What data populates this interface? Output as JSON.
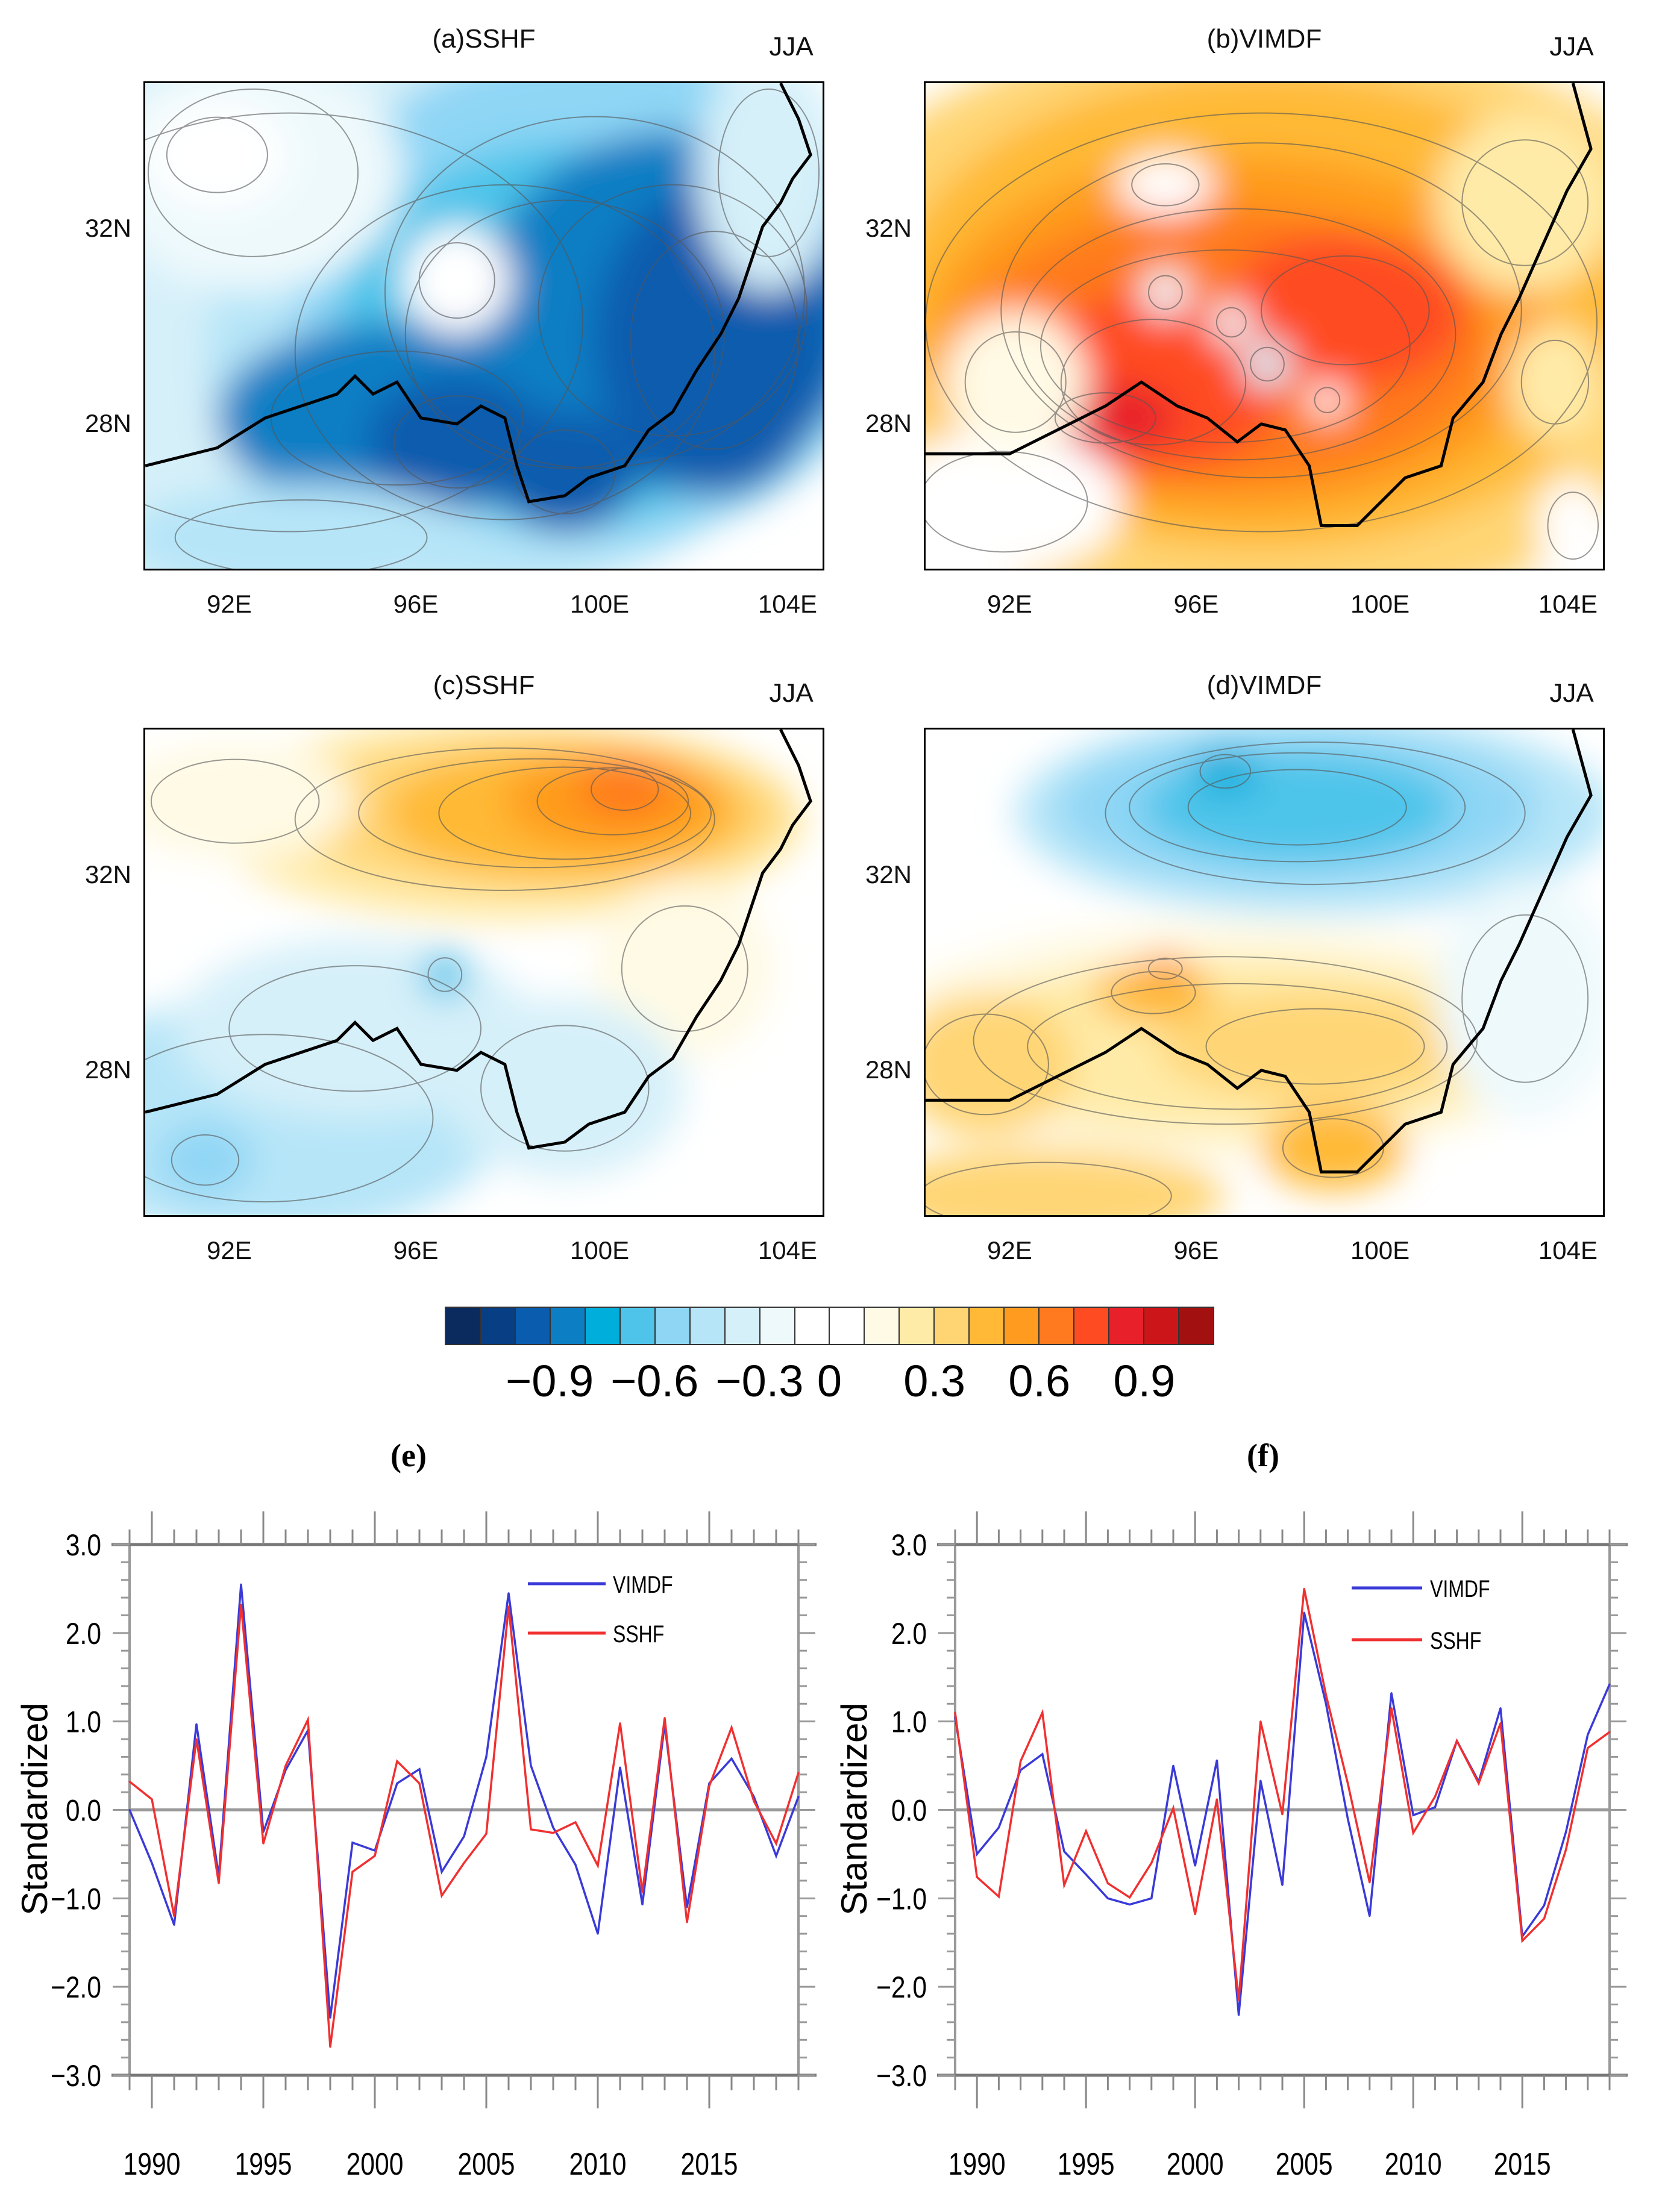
{
  "maps": [
    {
      "title": "(a)SSHF",
      "season": "JJA"
    },
    {
      "title": "(b)VIMDF",
      "season": "JJA"
    },
    {
      "title": "(c)SSHF",
      "season": "JJA"
    },
    {
      "title": "(d)VIMDF",
      "season": "JJA"
    }
  ],
  "lat_labels": [
    "32N",
    "28N"
  ],
  "lon_labels": [
    "92E",
    "96E",
    "100E",
    "104E"
  ],
  "colorbar": {
    "colors": [
      "#0b2a5e",
      "#083f84",
      "#0a5cae",
      "#0b7ec4",
      "#00aedc",
      "#4ec4ea",
      "#8fd6f5",
      "#b6e5f8",
      "#d6f0f9",
      "#eef9fc",
      "#ffffff",
      "#ffffff",
      "#fffae5",
      "#ffeba8",
      "#ffd574",
      "#ffb936",
      "#ff9b1f",
      "#ff7a1f",
      "#ff4b22",
      "#e8202a",
      "#cc1519",
      "#a31010"
    ],
    "labels": [
      "−0.9",
      "−0.6",
      "−0.3",
      "0",
      "0.3",
      "0.6",
      "0.9"
    ]
  },
  "chart_data": [
    {
      "type": "line",
      "panel_label": "(e)",
      "ylabel": "Standardized",
      "xlabel": "",
      "ylim": [
        -3,
        3
      ],
      "xlim": [
        1989,
        2019
      ],
      "yticks": [
        "3.0",
        "2.0",
        "1.0",
        "0.0",
        "−1.0",
        "−2.0",
        "−3.0"
      ],
      "xticks": [
        "1990",
        "1995",
        "2000",
        "2005",
        "2010",
        "2015"
      ],
      "legend_position": "top-right",
      "x": [
        1989,
        1990,
        1991,
        1992,
        1993,
        1994,
        1995,
        1996,
        1997,
        1998,
        1999,
        2000,
        2001,
        2002,
        2003,
        2004,
        2005,
        2006,
        2007,
        2008,
        2009,
        2010,
        2011,
        2012,
        2013,
        2014,
        2015,
        2016,
        2017,
        2018,
        2019
      ],
      "series": [
        {
          "name": "VIMDF",
          "color": "#3a3ad8",
          "values": [
            0.0,
            -0.6,
            -1.3,
            0.97,
            -0.75,
            2.55,
            -0.25,
            0.45,
            0.9,
            -2.35,
            -0.37,
            -0.46,
            0.3,
            0.46,
            -0.7,
            -0.3,
            0.6,
            2.45,
            0.5,
            -0.2,
            -0.62,
            -1.4,
            0.48,
            -1.07,
            0.97,
            -1.1,
            0.3,
            0.58,
            0.15,
            -0.52,
            0.15
          ]
        },
        {
          "name": "SSHF",
          "color": "#f03030",
          "values": [
            0.32,
            0.12,
            -1.2,
            0.8,
            -0.83,
            2.32,
            -0.38,
            0.5,
            1.02,
            -2.68,
            -0.7,
            -0.52,
            0.55,
            0.3,
            -0.97,
            -0.6,
            -0.27,
            2.3,
            -0.22,
            -0.26,
            -0.14,
            -0.63,
            0.98,
            -0.93,
            1.04,
            -1.27,
            0.27,
            0.93,
            0.1,
            -0.38,
            0.42
          ]
        }
      ]
    },
    {
      "type": "line",
      "panel_label": "(f)",
      "ylabel": "Standardized",
      "xlabel": "",
      "ylim": [
        -3,
        3
      ],
      "xlim": [
        1989,
        2019
      ],
      "yticks": [
        "3.0",
        "2.0",
        "1.0",
        "0.0",
        "−1.0",
        "−2.0",
        "−3.0"
      ],
      "xticks": [
        "1990",
        "1995",
        "2000",
        "2005",
        "2010",
        "2015"
      ],
      "legend_position": "top-right",
      "x": [
        1989,
        1990,
        1991,
        1992,
        1993,
        1994,
        1995,
        1996,
        1997,
        1998,
        1999,
        2000,
        2001,
        2002,
        2003,
        2004,
        2005,
        2006,
        2007,
        2008,
        2009,
        2010,
        2011,
        2012,
        2013,
        2014,
        2015,
        2016,
        2017,
        2018,
        2019
      ],
      "series": [
        {
          "name": "VIMDF",
          "color": "#3a3ad8",
          "values": [
            1.05,
            -0.5,
            -0.2,
            0.45,
            0.63,
            -0.47,
            -0.73,
            -1.0,
            -1.07,
            -1.0,
            0.5,
            -0.63,
            0.56,
            -2.32,
            0.33,
            -0.85,
            2.23,
            1.2,
            -0.1,
            -1.2,
            1.32,
            -0.06,
            0.03,
            0.78,
            0.32,
            1.15,
            -1.43,
            -1.08,
            -0.25,
            0.85,
            1.42
          ]
        },
        {
          "name": "SSHF",
          "color": "#f03030",
          "values": [
            1.1,
            -0.76,
            -0.98,
            0.55,
            1.1,
            -0.85,
            -0.24,
            -0.83,
            -0.99,
            -0.6,
            0.02,
            -1.18,
            0.12,
            -2.15,
            1.0,
            -0.05,
            2.5,
            1.3,
            0.3,
            -0.82,
            1.15,
            -0.26,
            0.15,
            0.78,
            0.3,
            0.98,
            -1.48,
            -1.23,
            -0.45,
            0.7,
            0.88
          ]
        }
      ]
    }
  ]
}
